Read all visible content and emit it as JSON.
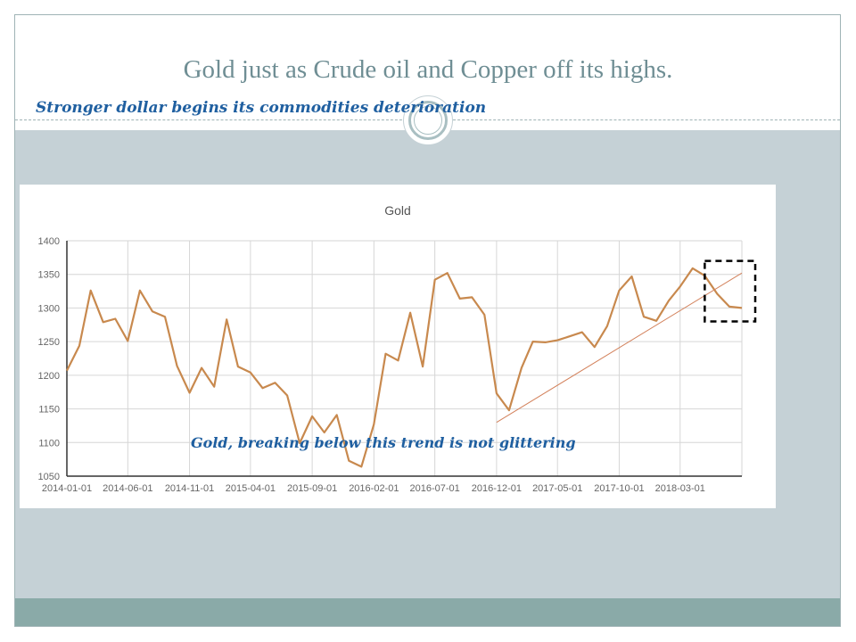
{
  "slide": {
    "title": "Gold just as Crude oil and Copper off its highs.",
    "subtitle": "Stronger dollar begins its commodities deterioration",
    "annotation": "Gold, breaking below this trend is not glittering"
  },
  "colors": {
    "line": "#c8894e",
    "trend": "#d3825c",
    "band": "#c5d1d6",
    "footer": "#8aaaa8",
    "title": "#6f8e94",
    "handwriting": "#1f5fa0"
  },
  "chart_data": {
    "type": "line",
    "title": "Gold",
    "xlabel": "",
    "ylabel": "",
    "ylim": [
      1050,
      1400
    ],
    "yticks": [
      1050,
      1100,
      1150,
      1200,
      1250,
      1300,
      1350,
      1400
    ],
    "xlim": [
      "2014-01-01",
      "2018-08-01"
    ],
    "xticks": [
      "2014-01-01",
      "2014-06-01",
      "2014-11-01",
      "2015-04-01",
      "2015-09-01",
      "2016-02-01",
      "2016-07-01",
      "2016-12-01",
      "2017-05-01",
      "2017-10-01",
      "2018-03-01"
    ],
    "grid": true,
    "series": [
      {
        "x": [
          "2014-01-01",
          "2014-02-01",
          "2014-03-01",
          "2014-04-01",
          "2014-05-01",
          "2014-06-01",
          "2014-07-01",
          "2014-08-01",
          "2014-09-01",
          "2014-10-01",
          "2014-11-01",
          "2014-12-01",
          "2015-01-01",
          "2015-02-01",
          "2015-03-01",
          "2015-04-01",
          "2015-05-01",
          "2015-06-01",
          "2015-07-01",
          "2015-08-01",
          "2015-09-01",
          "2015-10-01",
          "2015-11-01",
          "2015-12-01",
          "2016-01-01",
          "2016-02-01",
          "2016-03-01",
          "2016-04-01",
          "2016-05-01",
          "2016-06-01",
          "2016-07-01",
          "2016-08-01",
          "2016-09-01",
          "2016-10-01",
          "2016-11-01",
          "2016-12-01",
          "2017-01-01",
          "2017-02-01",
          "2017-03-01",
          "2017-04-01",
          "2017-05-01",
          "2017-06-01",
          "2017-07-01",
          "2017-08-01",
          "2017-09-01",
          "2017-10-01",
          "2017-11-01",
          "2017-12-01",
          "2018-01-01",
          "2018-02-01",
          "2018-03-01",
          "2018-04-01",
          "2018-05-01",
          "2018-06-01",
          "2018-07-01",
          "2018-08-01"
        ],
        "values": [
          1207,
          1244,
          1326,
          1279,
          1284,
          1251,
          1326,
          1295,
          1287,
          1214,
          1174,
          1211,
          1183,
          1283,
          1213,
          1204,
          1181,
          1189,
          1170,
          1099,
          1139,
          1115,
          1141,
          1073,
          1064,
          1127,
          1232,
          1222,
          1293,
          1213,
          1342,
          1352,
          1314,
          1316,
          1290,
          1173,
          1148,
          1211,
          1250,
          1249,
          1252,
          1258,
          1264,
          1242,
          1273,
          1326,
          1347,
          1287,
          1281,
          1311,
          1332,
          1359,
          1348,
          1321,
          1302,
          1300
        ]
      }
    ],
    "annotations": [
      {
        "type": "trendline",
        "from": {
          "x": "2016-12-01",
          "y": 1130
        },
        "to": {
          "x": "2018-08-01",
          "y": 1352
        }
      },
      {
        "type": "dashed-box",
        "from": {
          "x": "2018-05-01",
          "y": 1280
        },
        "to": {
          "x": "2018-08-01",
          "y": 1370
        }
      }
    ]
  }
}
